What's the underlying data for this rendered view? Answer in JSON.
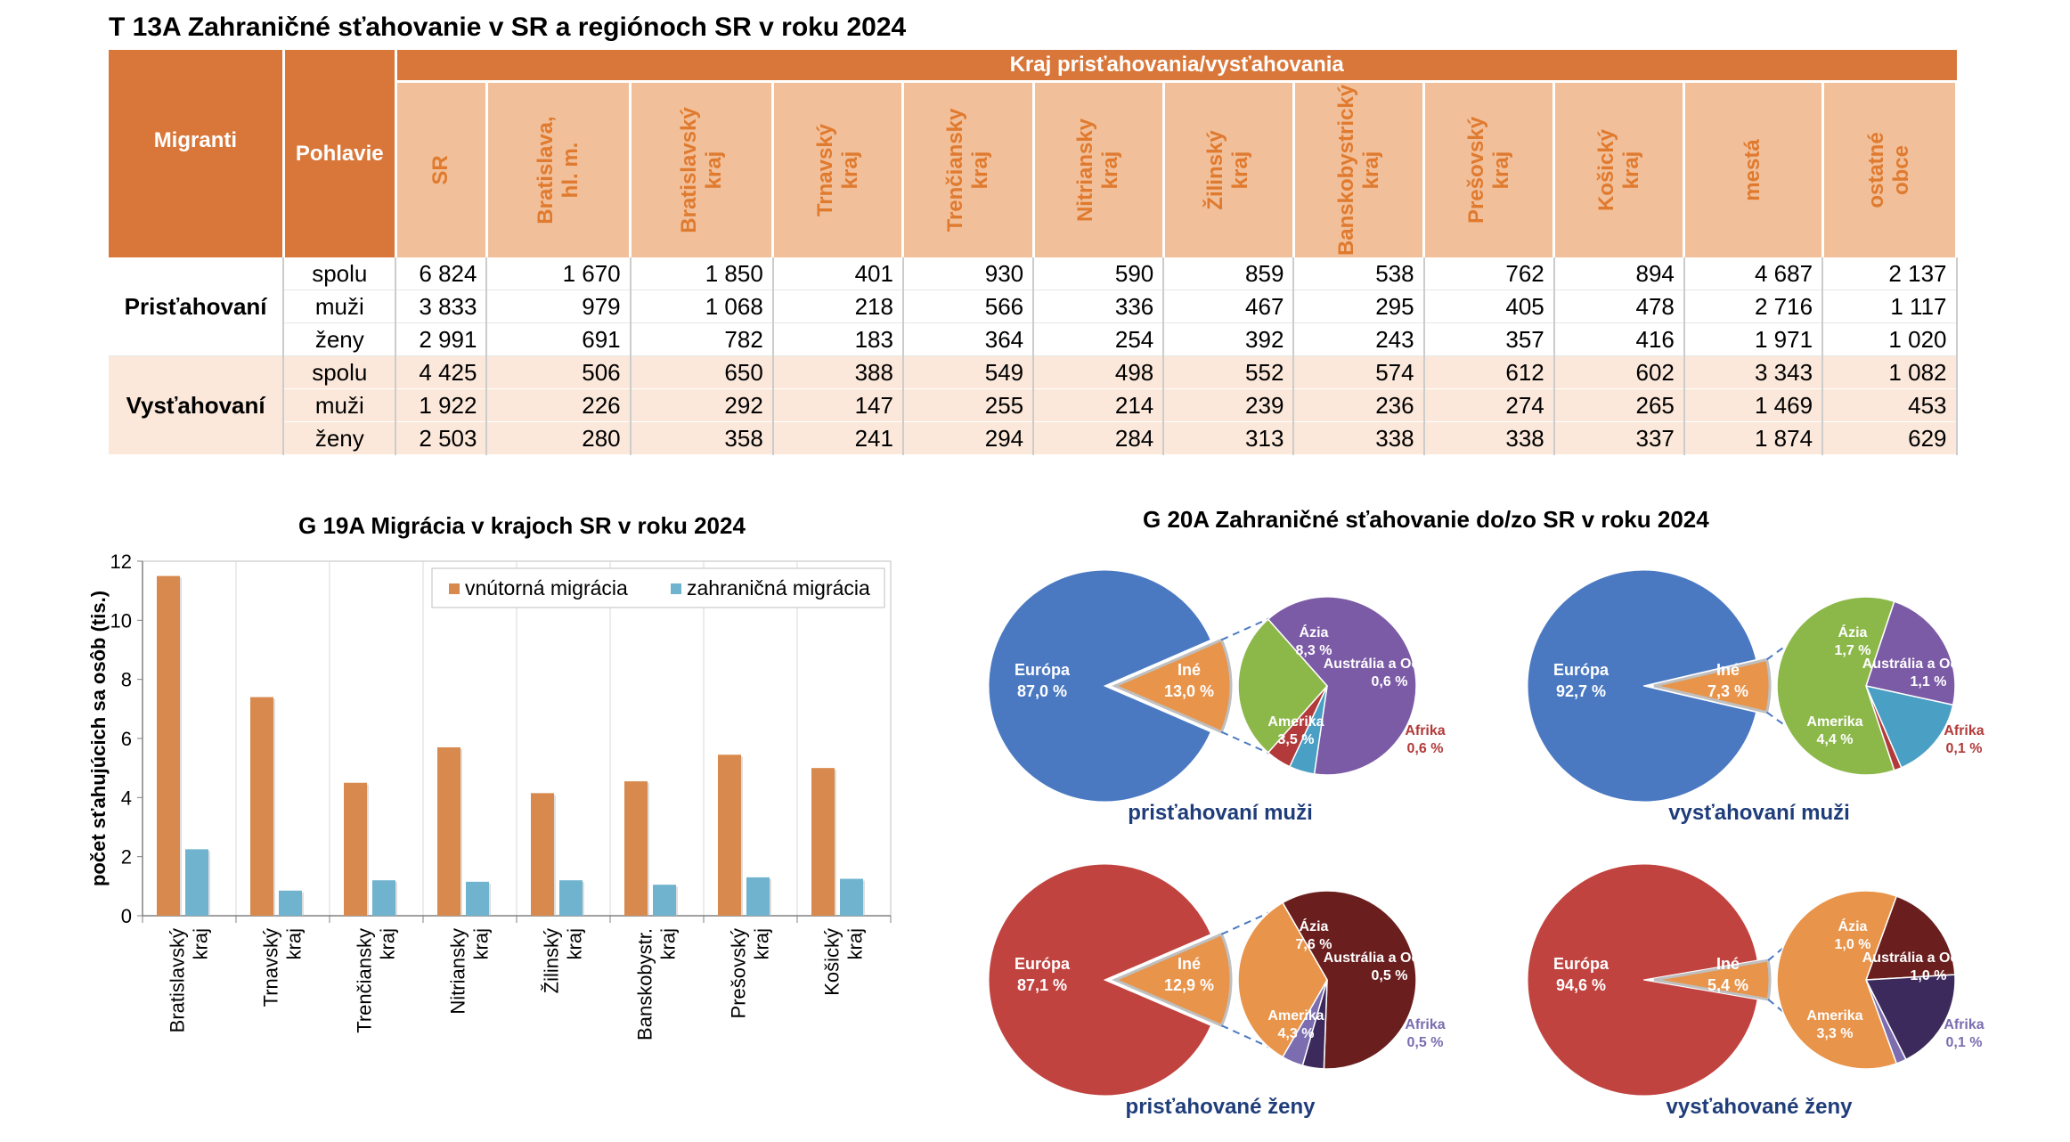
{
  "title": "T 13A Zahraničné sťahovanie v SR a regiónoch SR v roku 2024",
  "table": {
    "header_migranti": "Migranti",
    "header_pohlavie": "Pohlavie",
    "header_group": "Kraj prisťahovania/vysťahovania",
    "columns": [
      {
        "l1": "SR",
        "l2": ""
      },
      {
        "l1": "Bratislava,",
        "l2": "hl. m."
      },
      {
        "l1": "Bratislavský",
        "l2": "kraj"
      },
      {
        "l1": "Trnavský",
        "l2": "kraj"
      },
      {
        "l1": "Trenčiansky",
        "l2": "kraj"
      },
      {
        "l1": "Nitriansky",
        "l2": "kraj"
      },
      {
        "l1": "Žilinský",
        "l2": "kraj"
      },
      {
        "l1": "Banskobystrický",
        "l2": "kraj"
      },
      {
        "l1": "Prešovský",
        "l2": "kraj"
      },
      {
        "l1": "Košický",
        "l2": "kraj"
      },
      {
        "l1": "mestá",
        "l2": ""
      },
      {
        "l1": "ostatné",
        "l2": "obce"
      }
    ],
    "groups": [
      {
        "label": "Prisťahovaní",
        "rows": [
          {
            "sex": "spolu",
            "values": [
              "6 824",
              "1 670",
              "1 850",
              "401",
              "930",
              "590",
              "859",
              "538",
              "762",
              "894",
              "4 687",
              "2 137"
            ]
          },
          {
            "sex": "muži",
            "values": [
              "3 833",
              "979",
              "1 068",
              "218",
              "566",
              "336",
              "467",
              "295",
              "405",
              "478",
              "2 716",
              "1 117"
            ]
          },
          {
            "sex": "ženy",
            "values": [
              "2 991",
              "691",
              "782",
              "183",
              "364",
              "254",
              "392",
              "243",
              "357",
              "416",
              "1 971",
              "1 020"
            ]
          }
        ]
      },
      {
        "label": "Vysťahovaní",
        "rows": [
          {
            "sex": "spolu",
            "values": [
              "4 425",
              "506",
              "650",
              "388",
              "549",
              "498",
              "552",
              "574",
              "612",
              "602",
              "3 343",
              "1 082"
            ]
          },
          {
            "sex": "muži",
            "values": [
              "1 922",
              "226",
              "292",
              "147",
              "255",
              "214",
              "239",
              "236",
              "274",
              "265",
              "1 469",
              "453"
            ]
          },
          {
            "sex": "ženy",
            "values": [
              "2 503",
              "280",
              "358",
              "241",
              "294",
              "284",
              "313",
              "338",
              "338",
              "337",
              "1 874",
              "629"
            ]
          }
        ]
      }
    ]
  },
  "chart_data": [
    {
      "type": "bar",
      "title": "G 19A Migrácia v krajoch SR v roku 2024",
      "ylabel": "počet sťahujúcich sa osôb (tis.)",
      "xlabel": "",
      "ylim": [
        0,
        12
      ],
      "yticks": [
        0,
        2,
        4,
        6,
        8,
        10,
        12
      ],
      "categories": [
        {
          "l1": "Bratislavský",
          "l2": "kraj"
        },
        {
          "l1": "Trnavský",
          "l2": "kraj"
        },
        {
          "l1": "Trenčiansky",
          "l2": "kraj"
        },
        {
          "l1": "Nitriansky",
          "l2": "kraj"
        },
        {
          "l1": "Žilinský",
          "l2": "kraj"
        },
        {
          "l1": "Banskobystr.",
          "l2": "kraj"
        },
        {
          "l1": "Prešovský",
          "l2": "kraj"
        },
        {
          "l1": "Košický",
          "l2": "kraj"
        }
      ],
      "series": [
        {
          "name": "vnútorná migrácia",
          "color": "#d88a4e",
          "values": [
            11.5,
            7.4,
            4.5,
            5.7,
            4.15,
            4.55,
            5.45,
            5.0
          ]
        },
        {
          "name": "zahraničná migrácia",
          "color": "#6fb3cf",
          "values": [
            2.25,
            0.85,
            1.2,
            1.15,
            1.2,
            1.05,
            1.3,
            1.25
          ]
        }
      ],
      "legend": "top-right",
      "grid": "vertical"
    },
    {
      "type": "pie",
      "title": "G 20A Zahraničné sťahovanie do/zo SR v roku 2024",
      "panels": [
        {
          "caption": "prisťahovaní muži",
          "main_color": "#4a79c2",
          "main": [
            {
              "name": "Európa",
              "value": "87,0 %"
            },
            {
              "name": "Iné",
              "value": "13,0 %"
            }
          ],
          "sub": [
            {
              "name": "Ázia",
              "value": "8,3 %",
              "num": 8.3,
              "color": "#7b5aa6"
            },
            {
              "name": "Austrália a Oceánia",
              "value": "0,6 %",
              "num": 0.6,
              "color": "#4a9fc4"
            },
            {
              "name": "Afrika",
              "value": "0,6 %",
              "num": 0.6,
              "color": "#b23a3a"
            },
            {
              "name": "Amerika",
              "value": "3,5 %",
              "num": 3.5,
              "color": "#8cb84a"
            }
          ]
        },
        {
          "caption": "vysťahovaní muži",
          "main_color": "#4a79c2",
          "main": [
            {
              "name": "Európa",
              "value": "92,7 %"
            },
            {
              "name": "Iné",
              "value": "7,3 %"
            }
          ],
          "sub": [
            {
              "name": "Ázia",
              "value": "1,7 %",
              "num": 1.7,
              "color": "#7b5aa6"
            },
            {
              "name": "Austrália a Oceánia",
              "value": "1,1 %",
              "num": 1.1,
              "color": "#4a9fc4"
            },
            {
              "name": "Afrika",
              "value": "0,1 %",
              "num": 0.1,
              "color": "#b23a3a"
            },
            {
              "name": "Amerika",
              "value": "4,4 %",
              "num": 4.4,
              "color": "#8cb84a"
            }
          ]
        },
        {
          "caption": "prisťahované ženy",
          "main_color": "#c0433f",
          "main": [
            {
              "name": "Európa",
              "value": "87,1 %"
            },
            {
              "name": "Iné",
              "value": "12,9 %"
            }
          ],
          "sub": [
            {
              "name": "Ázia",
              "value": "7,6 %",
              "num": 7.6,
              "color": "#6b1e1e"
            },
            {
              "name": "Austrália a Oceánia",
              "value": "0,5 %",
              "num": 0.5,
              "color": "#3d2a5c"
            },
            {
              "name": "Afrika",
              "value": "0,5 %",
              "num": 0.5,
              "color": "#7b6db0"
            },
            {
              "name": "Amerika",
              "value": "4,3 %",
              "num": 4.3,
              "color": "#e8944a"
            }
          ]
        },
        {
          "caption": "vysťahované ženy",
          "main_color": "#c0433f",
          "main": [
            {
              "name": "Európa",
              "value": "94,6 %"
            },
            {
              "name": "Iné",
              "value": "5,4 %"
            }
          ],
          "sub": [
            {
              "name": "Ázia",
              "value": "1,0 %",
              "num": 1.0,
              "color": "#6b1e1e"
            },
            {
              "name": "Austrália a Oceánia",
              "value": "1,0 %",
              "num": 1.0,
              "color": "#3d2a5c"
            },
            {
              "name": "Afrika",
              "value": "0,1 %",
              "num": 0.1,
              "color": "#7b6db0"
            },
            {
              "name": "Amerika",
              "value": "3,3 %",
              "num": 3.3,
              "color": "#e8944a"
            }
          ]
        }
      ]
    }
  ]
}
